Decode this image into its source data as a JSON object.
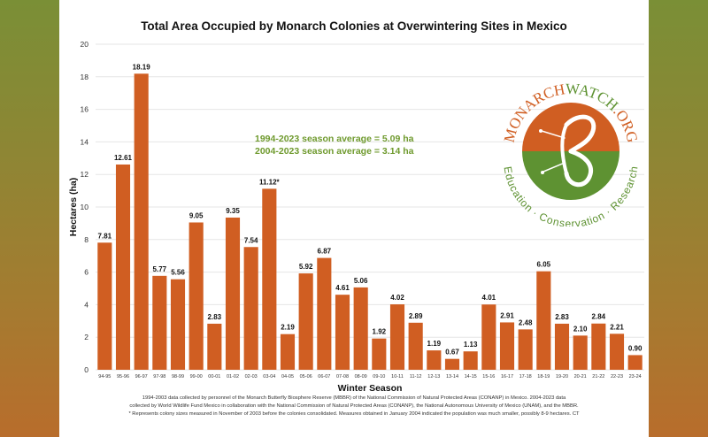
{
  "colors": {
    "bar": "#d05e22",
    "grid": "#e6e6e6",
    "average_text": "#6f9a2e",
    "logo_orange": "#d05e22",
    "logo_green": "#5e9232"
  },
  "annotations": {
    "average_1994_2023": "1994-2023 season average = 5.09 ha",
    "average_2004_2023": "2004-2023 season average = 3.14 ha"
  },
  "logo": {
    "name": "MONARCHWATCH.ORG",
    "name_part1": "MONARCH",
    "name_part2": "WATCH",
    "name_part3": ".ORG",
    "tagline": "Education · Conservation · Research"
  },
  "footnotes": [
    "1994-2003 data collected by personnel of the Monarch Butterfly Biosphere Reserve (MBBR) of the National Commission of Natural Protected Areas (CONANP) in Mexico. 2004-2023 data",
    "collected by World Wildlife Fund Mexico in collaboration with the National Commission of Natural Protected Areas (CONANP), the National Autonomous University of Mexico (UNAM), and the MBBR.",
    "* Represents colony sizes measured in November of 2003 before the colonies consolidated. Measures obtained in January 2004 indicated the population was much smaller, possibly 8-9 hectares. CT"
  ],
  "chart_data": {
    "type": "bar",
    "title": "Total Area Occupied by Monarch Colonies at Overwintering Sites in Mexico",
    "xlabel": "Winter Season",
    "ylabel": "Hectares (ha)",
    "ylim": [
      0,
      20
    ],
    "yticks": [
      0,
      2,
      4,
      6,
      8,
      10,
      12,
      14,
      16,
      18,
      20
    ],
    "grid": true,
    "legend": "none",
    "categories": [
      "94-95",
      "95-96",
      "96-97",
      "97-98",
      "98-99",
      "99-00",
      "00-01",
      "01-02",
      "02-03",
      "03-04",
      "04-05",
      "05-06",
      "06-07",
      "07-08",
      "08-09",
      "09-10",
      "10-11",
      "11-12",
      "12-13",
      "13-14",
      "14-15",
      "15-16",
      "16-17",
      "17-18",
      "18-19",
      "19-20",
      "20-21",
      "21-22",
      "22-23",
      "23-24"
    ],
    "values": [
      7.81,
      12.61,
      18.19,
      5.77,
      5.56,
      9.05,
      2.83,
      9.35,
      7.54,
      11.12,
      2.19,
      5.92,
      6.87,
      4.61,
      5.06,
      1.92,
      4.02,
      2.89,
      1.19,
      0.67,
      1.13,
      4.01,
      2.91,
      2.48,
      6.05,
      2.83,
      2.1,
      2.84,
      2.21,
      0.9
    ],
    "value_labels": [
      "7.81",
      "12.61",
      "18.19",
      "5.77",
      "5.56",
      "9.05",
      "2.83",
      "9.35",
      "7.54",
      "11.12*",
      "2.19",
      "5.92",
      "6.87",
      "4.61",
      "5.06",
      "1.92",
      "4.02",
      "2.89",
      "1.19",
      "0.67",
      "1.13",
      "4.01",
      "2.91",
      "2.48",
      "6.05",
      "2.83",
      "2.10",
      "2.84",
      "2.21",
      "0.90"
    ]
  }
}
